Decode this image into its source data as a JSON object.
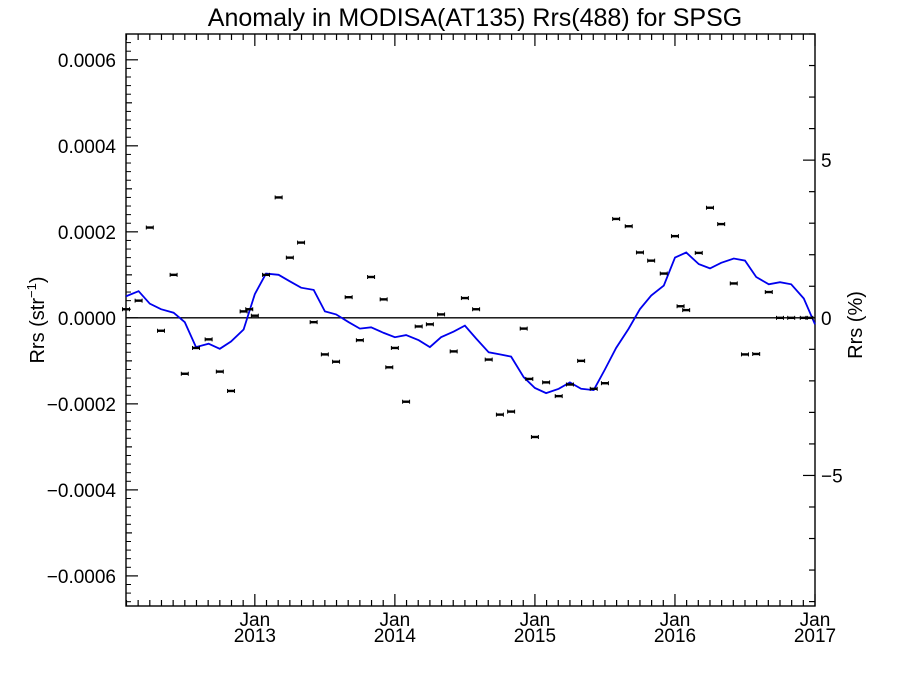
{
  "chart_data": {
    "type": "line",
    "title": "Anomaly in MODISA(AT135) Rrs(488) for SPSG",
    "ylabel": "Rrs (str",
    "ylabel_sup": "−1",
    "ylabel_close": ")",
    "y2label": "Rrs (%)",
    "xlim": [
      2012.08,
      2017.0
    ],
    "ylim": [
      -0.00067,
      0.00066
    ],
    "y2lim": [
      -9.14,
      9.0
    ],
    "y_ticks": [
      {
        "v": 0.0006,
        "label": "0.0006"
      },
      {
        "v": 0.0004,
        "label": "0.0004"
      },
      {
        "v": 0.0002,
        "label": "0.0002"
      },
      {
        "v": 0.0,
        "label": "0.0000"
      },
      {
        "v": -0.0002,
        "label": "−0.0002"
      },
      {
        "v": -0.0004,
        "label": "−0.0004"
      },
      {
        "v": -0.0006,
        "label": "−0.0006"
      }
    ],
    "y2_ticks": [
      {
        "v": 5,
        "label": "5"
      },
      {
        "v": 0,
        "label": "0"
      },
      {
        "v": -5,
        "label": "−5"
      }
    ],
    "x_ticks": [
      {
        "v": 2013.0,
        "month": "Jan",
        "year": "2013"
      },
      {
        "v": 2014.0,
        "month": "Jan",
        "year": "2014"
      },
      {
        "v": 2015.0,
        "month": "Jan",
        "year": "2015"
      },
      {
        "v": 2016.0,
        "month": "Jan",
        "year": "2016"
      },
      {
        "v": 2017.0,
        "month": "Jan",
        "year": "2017"
      }
    ],
    "zero_line": 0.0,
    "series": [
      {
        "type": "scatter_errorbar",
        "color": "#000000",
        "x": [
          2012.08,
          2012.17,
          2012.25,
          2012.33,
          2012.42,
          2012.5,
          2012.58,
          2012.67,
          2012.75,
          2012.83,
          2012.92,
          2012.96,
          2013.0,
          2013.08,
          2013.17,
          2013.25,
          2013.33,
          2013.42,
          2013.5,
          2013.58,
          2013.67,
          2013.75,
          2013.83,
          2013.92,
          2013.96,
          2014.0,
          2014.08,
          2014.17,
          2014.25,
          2014.33,
          2014.42,
          2014.5,
          2014.58,
          2014.67,
          2014.75,
          2014.83,
          2014.92,
          2014.96,
          2015.0,
          2015.08,
          2015.17,
          2015.25,
          2015.33,
          2015.42,
          2015.5,
          2015.58,
          2015.67,
          2015.75,
          2015.83,
          2015.92,
          2016.0,
          2016.04,
          2016.08,
          2016.17,
          2016.25,
          2016.33,
          2016.42,
          2016.5,
          2016.58,
          2016.67,
          2016.75,
          2016.83,
          2016.92,
          2016.96
        ],
        "y": [
          2e-05,
          4e-05,
          0.00021,
          -3e-05,
          0.0001,
          -0.00013,
          -7e-05,
          -5e-05,
          -0.000125,
          -0.00017,
          1.5e-05,
          2e-05,
          5e-06,
          0.0001,
          0.00028,
          0.00014,
          0.000175,
          -1e-05,
          -8.5e-05,
          -0.000102,
          4.8e-05,
          -5.2e-05,
          9.5e-05,
          4.3e-05,
          -0.000115,
          -7e-05,
          -0.000195,
          -2e-05,
          -1.5e-05,
          8e-06,
          -7.8e-05,
          4.6e-05,
          2e-05,
          -9.7e-05,
          -0.000225,
          -0.000218,
          -2.5e-05,
          -0.000142,
          -0.000277,
          -0.00015,
          -0.000182,
          -0.000155,
          -0.0001,
          -0.000165,
          -0.000152,
          0.00023,
          0.000213,
          0.000152,
          0.000133,
          0.000103,
          0.00019,
          2.7e-05,
          1.8e-05,
          0.000151,
          0.000256,
          0.000218,
          8e-05,
          -8.5e-05,
          -8.4e-05,
          6e-05,
          0.0,
          0.0,
          0.0,
          0.0
        ]
      },
      {
        "type": "line",
        "color": "#0000ee",
        "x": [
          2012.08,
          2012.17,
          2012.25,
          2012.33,
          2012.42,
          2012.5,
          2012.58,
          2012.67,
          2012.75,
          2012.83,
          2012.92,
          2013.0,
          2013.08,
          2013.17,
          2013.25,
          2013.33,
          2013.42,
          2013.5,
          2013.58,
          2013.67,
          2013.75,
          2013.83,
          2013.92,
          2014.0,
          2014.08,
          2014.17,
          2014.25,
          2014.33,
          2014.42,
          2014.5,
          2014.58,
          2014.67,
          2014.75,
          2014.83,
          2014.92,
          2015.0,
          2015.08,
          2015.17,
          2015.25,
          2015.33,
          2015.42,
          2015.5,
          2015.58,
          2015.67,
          2015.75,
          2015.83,
          2015.92,
          2016.0,
          2016.08,
          2016.17,
          2016.25,
          2016.33,
          2016.42,
          2016.5,
          2016.58,
          2016.67,
          2016.75,
          2016.83,
          2016.92,
          2017.0
        ],
        "y": [
          5e-05,
          6.2e-05,
          3.3e-05,
          2e-05,
          1.2e-05,
          -1e-05,
          -6.8e-05,
          -6e-05,
          -7.2e-05,
          -5.5e-05,
          -2.7e-05,
          5.5e-05,
          0.000103,
          0.0001,
          8.5e-05,
          7e-05,
          6.5e-05,
          1.5e-05,
          8e-06,
          -1e-05,
          -2.5e-05,
          -2.2e-05,
          -3.5e-05,
          -4.5e-05,
          -4e-05,
          -5.2e-05,
          -6.8e-05,
          -4.5e-05,
          -3.2e-05,
          -1.8e-05,
          -4.8e-05,
          -8e-05,
          -8.5e-05,
          -9e-05,
          -0.000138,
          -0.000163,
          -0.000175,
          -0.000165,
          -0.00015,
          -0.000165,
          -0.000168,
          -0.00012,
          -7e-05,
          -2.5e-05,
          2e-05,
          5.2e-05,
          7.5e-05,
          0.00014,
          0.000152,
          0.000125,
          0.000115,
          0.000128,
          0.000138,
          0.000133,
          9.5e-05,
          7.8e-05,
          8.3e-05,
          7.8e-05,
          4.5e-05,
          -1.5e-05
        ]
      }
    ]
  }
}
